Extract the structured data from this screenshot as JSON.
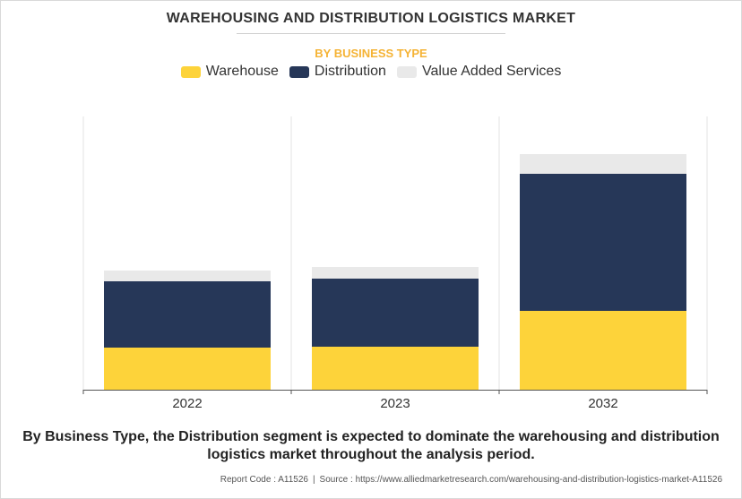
{
  "header": {
    "title": "WAREHOUSING AND DISTRIBUTION LOGISTICS MARKET",
    "subtitle": "BY BUSINESS TYPE"
  },
  "colors": {
    "subtitle": "#f5b335",
    "warehouse": "#fdd33a",
    "distribution": "#263758",
    "value_added": "#e9e9e9"
  },
  "chart_data": {
    "type": "bar",
    "stacked": true,
    "categories": [
      "2022",
      "2023",
      "2032"
    ],
    "series": [
      {
        "name": "Warehouse",
        "color": "#fdd33a",
        "values": [
          47,
          48,
          88
        ]
      },
      {
        "name": "Distribution",
        "color": "#263758",
        "values": [
          74,
          76,
          153
        ]
      },
      {
        "name": "Value Added Services",
        "color": "#e9e9e9",
        "values": [
          12,
          13,
          22
        ]
      }
    ],
    "ylim": [
      0,
      305
    ],
    "title": "WAREHOUSING AND DISTRIBUTION LOGISTICS MARKET",
    "subtitle": "BY BUSINESS TYPE",
    "xlabel": "",
    "ylabel": "",
    "legend": "top-center",
    "grid": "vertical-separators"
  },
  "caption": "By Business Type, the Distribution segment is expected to dominate the warehousing and distribution logistics market throughout the analysis period.",
  "footer": {
    "report_code": "Report Code : A11526",
    "separator": "|",
    "source": "Source : https://www.alliedmarketresearch.com/warehousing-and-distribution-logistics-market-A11526"
  }
}
